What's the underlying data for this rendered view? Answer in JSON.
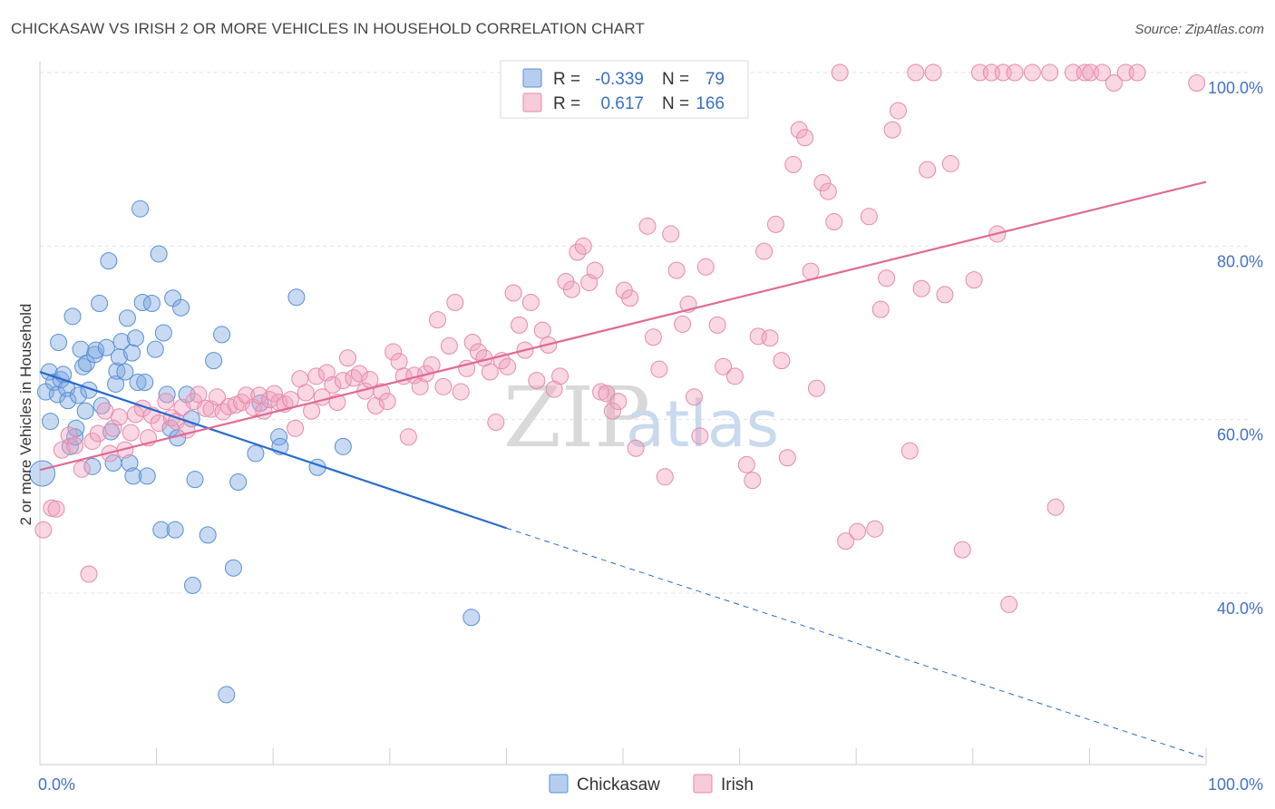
{
  "title": "CHICKASAW VS IRISH 2 OR MORE VEHICLES IN HOUSEHOLD CORRELATION CHART",
  "source": "Source: ZipAtlas.com",
  "watermark": {
    "zip": "ZIP",
    "atlas": "atlas"
  },
  "legend": {
    "r_label": "R =",
    "n_label": "N =",
    "rows": [
      {
        "series": "Chickasaw",
        "r": "-0.339",
        "n": "79",
        "color": "#7aa6e0"
      },
      {
        "series": "Irish",
        "r": "0.617",
        "n": "166",
        "color": "#f0a0bc"
      }
    ]
  },
  "chart_data": {
    "type": "scatter",
    "title": "CHICKASAW VS IRISH 2 OR MORE VEHICLES IN HOUSEHOLD CORRELATION CHART",
    "xlabel": "",
    "ylabel": "2 or more Vehicles in Household",
    "xlim": [
      0,
      100
    ],
    "ylim": [
      20,
      102
    ],
    "x_tick_labels": [
      {
        "value": 0,
        "label": "0.0%"
      },
      {
        "value": 100,
        "label": "100.0%"
      }
    ],
    "y_tick_labels": [
      {
        "value": 40,
        "label": "40.0%"
      },
      {
        "value": 60,
        "label": "60.0%"
      },
      {
        "value": 80,
        "label": "80.0%"
      },
      {
        "value": 100,
        "label": "100.0%"
      }
    ],
    "grid": "horizontal dashed",
    "legend_position": "top-center",
    "series": [
      {
        "name": "Chickasaw",
        "color": "#7aa6e0",
        "stroke": "#5a8fd6",
        "trend": {
          "x0": 0,
          "y0": 65.5,
          "x1": 40,
          "y1": 47.5,
          "dashed_to_x": 100,
          "dashed_to_y": 21.0,
          "color": "#2a6acb"
        },
        "points": [
          [
            0.2,
            53.8
          ],
          [
            0.5,
            63.2
          ],
          [
            0.8,
            65.5
          ],
          [
            0.9,
            59.8
          ],
          [
            1.2,
            64.3
          ],
          [
            1.5,
            62.9
          ],
          [
            1.6,
            68.9
          ],
          [
            1.8,
            64.6
          ],
          [
            2.0,
            65.2
          ],
          [
            2.3,
            63.6
          ],
          [
            2.4,
            62.2
          ],
          [
            2.6,
            56.9
          ],
          [
            2.8,
            71.9
          ],
          [
            3.0,
            58.0
          ],
          [
            3.1,
            59.0
          ],
          [
            3.3,
            62.8
          ],
          [
            3.5,
            68.1
          ],
          [
            3.7,
            66.1
          ],
          [
            3.9,
            61.0
          ],
          [
            4.0,
            66.5
          ],
          [
            4.2,
            63.4
          ],
          [
            4.5,
            54.6
          ],
          [
            4.7,
            67.5
          ],
          [
            4.8,
            68.0
          ],
          [
            5.1,
            73.4
          ],
          [
            5.3,
            61.6
          ],
          [
            5.7,
            68.3
          ],
          [
            5.9,
            78.3
          ],
          [
            6.1,
            58.6
          ],
          [
            6.3,
            55.0
          ],
          [
            6.5,
            64.1
          ],
          [
            6.6,
            65.6
          ],
          [
            6.8,
            67.2
          ],
          [
            7.0,
            69.0
          ],
          [
            7.3,
            65.5
          ],
          [
            7.5,
            71.7
          ],
          [
            7.7,
            55.0
          ],
          [
            7.9,
            67.7
          ],
          [
            8.0,
            53.5
          ],
          [
            8.2,
            69.4
          ],
          [
            8.4,
            64.3
          ],
          [
            8.6,
            84.3
          ],
          [
            8.8,
            73.5
          ],
          [
            9.0,
            64.3
          ],
          [
            9.2,
            53.5
          ],
          [
            9.6,
            73.4
          ],
          [
            9.9,
            68.1
          ],
          [
            10.2,
            79.1
          ],
          [
            10.4,
            47.3
          ],
          [
            10.6,
            70.0
          ],
          [
            10.9,
            62.9
          ],
          [
            11.2,
            59.0
          ],
          [
            11.4,
            74.0
          ],
          [
            11.6,
            47.3
          ],
          [
            11.8,
            57.9
          ],
          [
            12.1,
            72.9
          ],
          [
            12.6,
            62.9
          ],
          [
            13.0,
            60.1
          ],
          [
            13.1,
            40.9
          ],
          [
            13.3,
            53.1
          ],
          [
            14.4,
            46.7
          ],
          [
            14.9,
            66.8
          ],
          [
            15.6,
            69.8
          ],
          [
            16.0,
            28.3
          ],
          [
            16.6,
            42.9
          ],
          [
            17.0,
            52.8
          ],
          [
            18.5,
            56.1
          ],
          [
            18.9,
            61.9
          ],
          [
            20.5,
            58.0
          ],
          [
            20.6,
            56.9
          ],
          [
            22.0,
            74.1
          ],
          [
            23.8,
            54.5
          ],
          [
            26.0,
            56.9
          ],
          [
            37.0,
            37.2
          ]
        ]
      },
      {
        "name": "Irish",
        "color": "#f0a0bc",
        "stroke": "#e58aab",
        "trend": {
          "x0": 0,
          "y0": 54.2,
          "x1": 100,
          "y1": 87.4,
          "color": "#e06a94"
        },
        "points": [
          [
            0.3,
            47.3
          ],
          [
            1.0,
            49.8
          ],
          [
            1.4,
            49.7
          ],
          [
            1.9,
            56.5
          ],
          [
            2.5,
            58.2
          ],
          [
            3.0,
            57.0
          ],
          [
            3.6,
            54.3
          ],
          [
            4.2,
            42.2
          ],
          [
            4.5,
            57.5
          ],
          [
            5.0,
            58.4
          ],
          [
            5.6,
            61.0
          ],
          [
            6.0,
            56.1
          ],
          [
            6.3,
            59.0
          ],
          [
            6.8,
            60.3
          ],
          [
            7.3,
            56.5
          ],
          [
            7.8,
            58.5
          ],
          [
            8.2,
            60.6
          ],
          [
            8.8,
            61.3
          ],
          [
            9.3,
            57.9
          ],
          [
            9.6,
            60.5
          ],
          [
            10.2,
            59.6
          ],
          [
            10.8,
            62.1
          ],
          [
            11.3,
            60.2
          ],
          [
            11.7,
            59.8
          ],
          [
            12.2,
            61.4
          ],
          [
            12.6,
            58.8
          ],
          [
            13.2,
            62.1
          ],
          [
            13.6,
            62.9
          ],
          [
            14.2,
            61.3
          ],
          [
            14.7,
            61.2
          ],
          [
            15.2,
            62.6
          ],
          [
            15.7,
            60.9
          ],
          [
            16.2,
            61.5
          ],
          [
            16.8,
            61.7
          ],
          [
            17.3,
            62.0
          ],
          [
            17.7,
            62.8
          ],
          [
            18.3,
            61.4
          ],
          [
            18.8,
            62.8
          ],
          [
            19.2,
            61.0
          ],
          [
            19.7,
            62.3
          ],
          [
            20.1,
            63.0
          ],
          [
            20.5,
            62.0
          ],
          [
            21.0,
            61.8
          ],
          [
            21.5,
            62.3
          ],
          [
            21.9,
            59.0
          ],
          [
            22.3,
            64.7
          ],
          [
            22.8,
            63.1
          ],
          [
            23.3,
            61.0
          ],
          [
            23.7,
            65.0
          ],
          [
            24.2,
            62.6
          ],
          [
            24.6,
            65.4
          ],
          [
            25.1,
            64.0
          ],
          [
            25.5,
            62.0
          ],
          [
            26.0,
            64.5
          ],
          [
            26.4,
            67.1
          ],
          [
            26.9,
            64.8
          ],
          [
            27.4,
            65.3
          ],
          [
            27.9,
            63.3
          ],
          [
            28.3,
            64.6
          ],
          [
            28.8,
            61.6
          ],
          [
            29.3,
            63.2
          ],
          [
            29.8,
            62.1
          ],
          [
            30.3,
            67.8
          ],
          [
            30.8,
            66.7
          ],
          [
            31.2,
            65.0
          ],
          [
            31.6,
            58.0
          ],
          [
            32.1,
            65.1
          ],
          [
            32.6,
            63.8
          ],
          [
            33.1,
            65.3
          ],
          [
            33.6,
            66.3
          ],
          [
            34.1,
            71.5
          ],
          [
            34.6,
            63.8
          ],
          [
            35.1,
            68.5
          ],
          [
            35.6,
            73.5
          ],
          [
            36.1,
            63.2
          ],
          [
            36.6,
            65.9
          ],
          [
            37.1,
            68.9
          ],
          [
            37.6,
            67.8
          ],
          [
            38.1,
            67.1
          ],
          [
            38.6,
            65.5
          ],
          [
            39.1,
            59.7
          ],
          [
            39.6,
            66.8
          ],
          [
            40.1,
            66.1
          ],
          [
            40.6,
            74.6
          ],
          [
            41.1,
            70.9
          ],
          [
            41.6,
            68.0
          ],
          [
            42.1,
            73.5
          ],
          [
            42.6,
            64.5
          ],
          [
            43.1,
            70.3
          ],
          [
            43.6,
            68.6
          ],
          [
            44.1,
            63.5
          ],
          [
            44.6,
            65.0
          ],
          [
            45.1,
            75.9
          ],
          [
            45.6,
            75.0
          ],
          [
            46.1,
            79.3
          ],
          [
            46.6,
            80.0
          ],
          [
            47.1,
            75.8
          ],
          [
            47.6,
            77.2
          ],
          [
            48.1,
            63.2
          ],
          [
            48.6,
            63.0
          ],
          [
            49.1,
            61.0
          ],
          [
            49.6,
            62.1
          ],
          [
            50.1,
            74.9
          ],
          [
            50.6,
            74.0
          ],
          [
            51.1,
            56.7
          ],
          [
            52.1,
            82.3
          ],
          [
            52.6,
            69.5
          ],
          [
            53.1,
            65.8
          ],
          [
            53.6,
            53.4
          ],
          [
            54.1,
            81.4
          ],
          [
            54.6,
            77.2
          ],
          [
            55.1,
            71.0
          ],
          [
            55.6,
            73.3
          ],
          [
            56.1,
            62.6
          ],
          [
            56.6,
            58.1
          ],
          [
            57.1,
            77.6
          ],
          [
            58.1,
            70.9
          ],
          [
            58.6,
            66.1
          ],
          [
            59.6,
            65.0
          ],
          [
            60.6,
            54.8
          ],
          [
            61.1,
            53.0
          ],
          [
            61.6,
            69.6
          ],
          [
            62.1,
            79.4
          ],
          [
            62.6,
            69.4
          ],
          [
            63.1,
            82.5
          ],
          [
            63.6,
            66.8
          ],
          [
            64.1,
            55.6
          ],
          [
            64.6,
            89.4
          ],
          [
            65.1,
            93.4
          ],
          [
            65.6,
            92.5
          ],
          [
            66.1,
            77.1
          ],
          [
            66.6,
            63.6
          ],
          [
            67.1,
            87.3
          ],
          [
            67.6,
            86.3
          ],
          [
            68.1,
            82.8
          ],
          [
            68.6,
            100
          ],
          [
            69.1,
            46.0
          ],
          [
            70.1,
            47.1
          ],
          [
            71.1,
            83.4
          ],
          [
            71.6,
            47.4
          ],
          [
            72.1,
            72.7
          ],
          [
            72.6,
            76.3
          ],
          [
            73.1,
            93.4
          ],
          [
            73.6,
            95.6
          ],
          [
            74.6,
            56.4
          ],
          [
            75.1,
            100
          ],
          [
            75.6,
            75.1
          ],
          [
            76.1,
            88.8
          ],
          [
            76.6,
            100
          ],
          [
            77.6,
            74.4
          ],
          [
            78.1,
            89.5
          ],
          [
            79.1,
            45.0
          ],
          [
            80.1,
            76.1
          ],
          [
            80.6,
            100
          ],
          [
            81.6,
            100
          ],
          [
            82.1,
            81.4
          ],
          [
            82.6,
            100
          ],
          [
            83.1,
            38.7
          ],
          [
            83.6,
            100
          ],
          [
            85.1,
            100
          ],
          [
            86.6,
            100
          ],
          [
            87.1,
            49.9
          ],
          [
            88.6,
            100
          ],
          [
            89.6,
            100
          ],
          [
            90.1,
            100
          ],
          [
            91.1,
            100
          ],
          [
            92.1,
            98.8
          ],
          [
            93.1,
            100
          ],
          [
            94.1,
            100
          ],
          [
            99.2,
            98.8
          ]
        ]
      }
    ]
  }
}
